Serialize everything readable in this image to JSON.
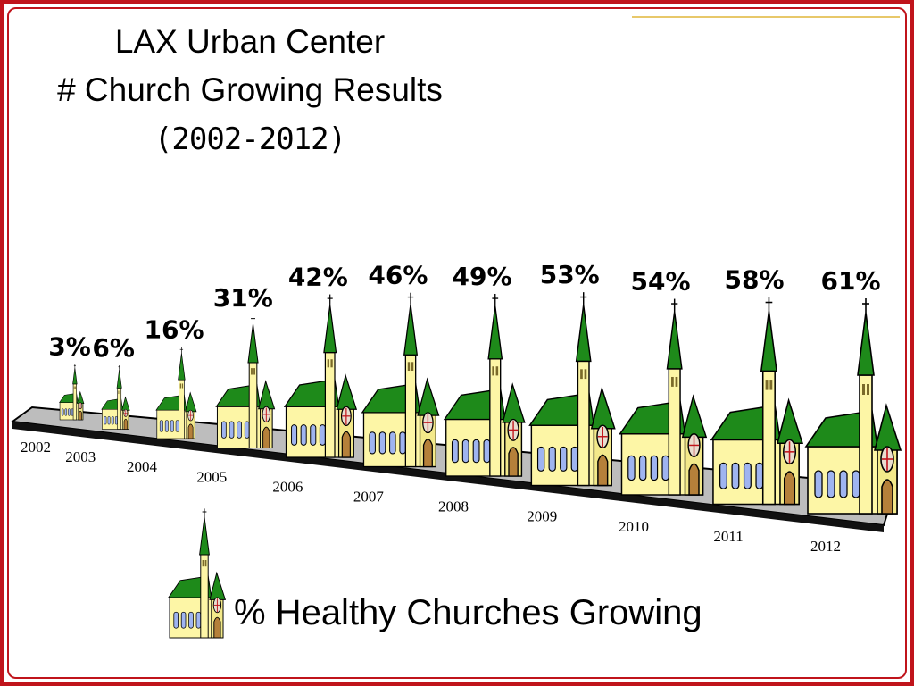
{
  "title": {
    "line1": "LAX Urban Center",
    "line2": "# Church Growing Results",
    "line3": "(2002-2012)"
  },
  "legend": {
    "label": "% Healthy Churches Growing"
  },
  "colors": {
    "frame": "#c0141b",
    "roof": "#1e8a1a",
    "wall": "#fdf6a6",
    "platform": "#bdbdbd",
    "window": "#9fb4f0",
    "door": "#b5803a"
  },
  "chart_data": {
    "type": "bar",
    "categories": [
      "2002",
      "2003",
      "2004",
      "2005",
      "2006",
      "2007",
      "2008",
      "2009",
      "2010",
      "2011",
      "2012"
    ],
    "values": [
      3,
      6,
      16,
      31,
      42,
      46,
      49,
      53,
      54,
      58,
      61
    ],
    "data_labels": [
      "3%",
      "6%",
      "16%",
      "31%",
      "42%",
      "46%",
      "49%",
      "53%",
      "54%",
      "58%",
      "61%"
    ],
    "marker": "church-icon",
    "ylabel": "",
    "xlabel": ""
  }
}
